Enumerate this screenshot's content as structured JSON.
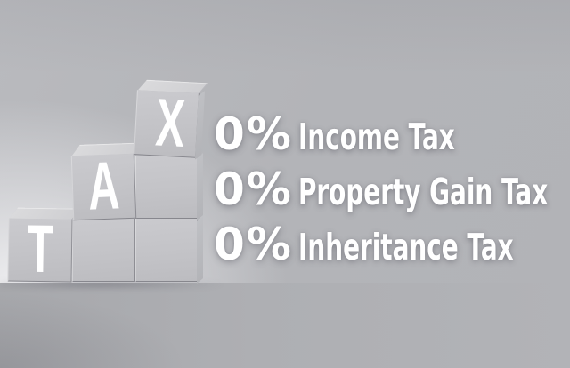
{
  "graphic": {
    "blocks": {
      "letters": [
        "T",
        "A",
        "X"
      ]
    },
    "lines": [
      {
        "percent": "0%",
        "label": "Income Tax"
      },
      {
        "percent": "0%",
        "label": "Property Gain Tax"
      },
      {
        "percent": "0%",
        "label": "Inheritance Tax"
      }
    ],
    "colors": {
      "background": "#b3b4b8",
      "background_light": "#dadadc",
      "floor": "#aaabaf",
      "block_face": "#c4c4c8",
      "block_top": "#d6d6d9",
      "text": "#ffffff"
    }
  }
}
